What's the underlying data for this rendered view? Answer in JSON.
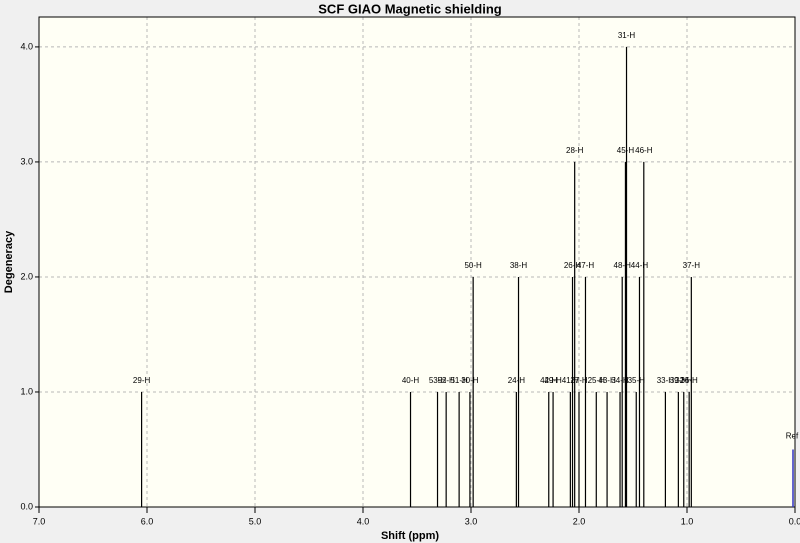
{
  "chart_data": {
    "type": "stick",
    "title": "SCF GIAO Magnetic shielding",
    "xlabel": "Shift (ppm)",
    "ylabel": "Degeneracy",
    "x": [
      6.05,
      3.56,
      3.31,
      3.23,
      3.11,
      3.01,
      2.98,
      2.58,
      2.56,
      2.28,
      2.24,
      2.08,
      2.06,
      2.04,
      2.0,
      1.94,
      1.84,
      1.74,
      1.62,
      1.6,
      1.57,
      1.56,
      1.47,
      1.44,
      1.4,
      1.2,
      1.08,
      1.03,
      0.98,
      0.96
    ],
    "values": [
      1,
      1,
      1,
      1,
      1,
      1,
      2,
      1,
      2,
      1,
      1,
      1,
      2,
      3,
      1,
      2,
      1,
      1,
      1,
      2,
      3,
      4,
      1,
      2,
      3,
      1,
      1,
      1,
      1,
      2
    ],
    "peak_labels": [
      "29-H",
      "40-H",
      "53-H",
      "52-H",
      "51-H",
      "30-H",
      "50-H",
      "24-H",
      "38-H",
      "42-H",
      "49-H",
      "41-H",
      "26-H",
      "28-H",
      "27-H",
      "47-H",
      "25-H",
      "43-H",
      "34-H",
      "48-H",
      "45-H",
      "31-H",
      "35-H",
      "44-H",
      "46-H",
      "33-H",
      "39-H",
      "32-H",
      "36-H",
      "37-H"
    ],
    "color": "#000000",
    "ref": {
      "label": "Ref",
      "x": 0.0,
      "value": 0.5,
      "color": "#3030c0"
    },
    "xlim": [
      7.0,
      0.0
    ],
    "ylim": [
      0,
      4.26
    ],
    "xticks": [
      {
        "value": 7,
        "label": "7.0"
      },
      {
        "value": 6,
        "label": "6.0"
      },
      {
        "value": 5,
        "label": "5.0"
      },
      {
        "value": 4,
        "label": "4.0"
      },
      {
        "value": 3,
        "label": "3.0"
      },
      {
        "value": 2,
        "label": "2.0"
      },
      {
        "value": 1,
        "label": "1.0"
      },
      {
        "value": 0,
        "label": "0.0"
      }
    ],
    "yticks": [
      {
        "value": 0,
        "label": "0.0"
      },
      {
        "value": 1,
        "label": "1.0"
      },
      {
        "value": 2,
        "label": "2.0"
      },
      {
        "value": 3,
        "label": "3.0"
      },
      {
        "value": 4,
        "label": "4.0"
      }
    ],
    "grid": true,
    "background": "#fffff5"
  }
}
